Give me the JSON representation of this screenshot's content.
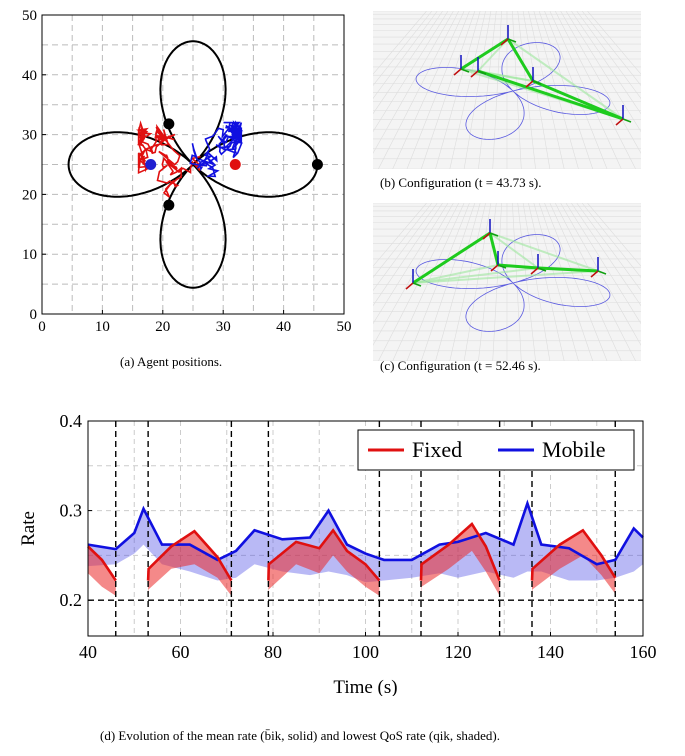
{
  "panels": {
    "a": {
      "caption": "(a) Agent positions.",
      "chart_data": {
        "type": "scatter",
        "xlim": [
          0,
          50
        ],
        "ylim": [
          0,
          50
        ],
        "xticks": [
          0,
          10,
          20,
          30,
          40,
          50
        ],
        "yticks": [
          0,
          10,
          20,
          30,
          40,
          50
        ],
        "grid": true,
        "tick_labels_x": [
          "0",
          "10",
          "20",
          "30",
          "40",
          "50"
        ],
        "tick_labels_y": [
          "0",
          "10",
          "20",
          "30",
          "40",
          "50"
        ],
        "trajectory_centers": [
          [
            25,
            25
          ]
        ],
        "fixed_agents": [
          [
            21,
            31.8
          ],
          [
            45.6,
            25
          ],
          [
            21,
            18.2
          ]
        ],
        "colored_agents": [
          {
            "color": "#1f1fd0",
            "point": [
              18,
              25
            ]
          },
          {
            "color": "#e01010",
            "point": [
              32,
              25
            ]
          }
        ]
      }
    },
    "b": {
      "caption": "(b) Configuration (t = 43.73 s)."
    },
    "c": {
      "caption": "(c) Configuration (t = 52.46 s)."
    },
    "d": {
      "caption": "(d) Evolution of the mean rate (b̄ik, solid) and lowest QoS rate (qik, shaded).",
      "chart_data": {
        "type": "line",
        "xlabel": "Time (s)",
        "ylabel": "Rate",
        "xlim": [
          40,
          160
        ],
        "ylim": [
          0.16,
          0.4
        ],
        "xticks": [
          40,
          60,
          80,
          100,
          120,
          140,
          160
        ],
        "yticks": [
          0.2,
          0.3,
          0.4
        ],
        "xtick_labels": [
          "40",
          "60",
          "80",
          "100",
          "120",
          "140",
          "160"
        ],
        "ytick_labels": [
          "0.2",
          "0.3",
          "0.4"
        ],
        "threshold": 0.2,
        "event_lines": [
          46,
          53,
          71,
          79,
          103,
          112,
          129,
          136,
          154
        ],
        "legend_position": "top-right",
        "series": [
          {
            "name": "Fixed",
            "color": "#e01010",
            "x": [
              40,
              43,
              46,
              46.1,
              53,
              53.1,
              58,
              63,
              68,
              71,
              71.1,
              79,
              79.1,
              85,
              90,
              93,
              96,
              100,
              103,
              103.1,
              112,
              112.1,
              118,
              123,
              126,
              129,
              129.1,
              136,
              136.1,
              142,
              147,
              151,
              154,
              154.1,
              160
            ],
            "values": [
              0.26,
              0.245,
              0.222,
              null,
              0.222,
              0.235,
              0.26,
              0.277,
              0.248,
              0.222,
              null,
              0.222,
              0.24,
              0.265,
              0.258,
              0.278,
              0.255,
              0.24,
              0.222,
              null,
              0.222,
              0.24,
              0.262,
              0.285,
              0.26,
              0.222,
              null,
              0.222,
              0.235,
              0.262,
              0.278,
              0.25,
              0.225,
              null,
              null
            ],
            "shade_low": [
              0.23,
              0.215,
              0.205,
              null,
              0.205,
              0.212,
              0.235,
              0.24,
              0.225,
              0.205,
              null,
              0.205,
              0.212,
              0.24,
              0.23,
              0.25,
              0.232,
              0.215,
              0.205,
              null,
              0.205,
              0.215,
              0.235,
              0.255,
              0.232,
              0.205,
              null,
              0.205,
              0.212,
              0.235,
              0.25,
              0.228,
              0.207,
              null,
              null
            ]
          },
          {
            "name": "Mobile",
            "color": "#1010e0",
            "x": [
              40,
              46,
              50,
              52,
              56,
              62,
              68,
              72,
              76,
              82,
              88,
              92,
              96,
              100,
              104,
              110,
              116,
              120,
              126,
              132,
              135,
              138,
              144,
              150,
              154,
              158,
              160
            ],
            "values": [
              0.262,
              0.257,
              0.275,
              0.302,
              0.262,
              0.262,
              0.245,
              0.255,
              0.278,
              0.268,
              0.27,
              0.3,
              0.262,
              0.252,
              0.245,
              0.245,
              0.262,
              0.265,
              0.275,
              0.262,
              0.308,
              0.262,
              0.258,
              0.24,
              0.245,
              0.28,
              0.27
            ],
            "shade_low": [
              0.238,
              0.24,
              0.252,
              0.262,
              0.24,
              0.232,
              0.222,
              0.225,
              0.24,
              0.232,
              0.228,
              0.232,
              0.228,
              0.22,
              0.222,
              0.225,
              0.23,
              0.225,
              0.232,
              0.225,
              0.232,
              0.232,
              0.222,
              0.222,
              0.225,
              0.232,
              0.24
            ]
          }
        ]
      }
    }
  }
}
